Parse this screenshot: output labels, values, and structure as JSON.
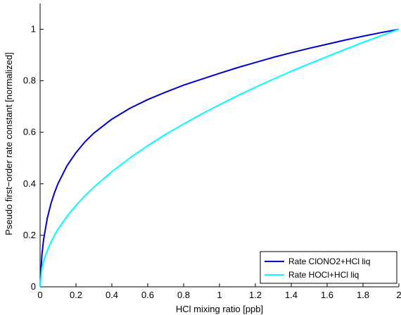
{
  "chart_data": {
    "type": "line",
    "title": "",
    "xlabel": "HCl mixing ratio [ppb]",
    "ylabel": "Pseudo first−order rate constant [normalized]",
    "xlim": [
      0,
      2
    ],
    "ylim": [
      0,
      1.1
    ],
    "xticks": [
      0,
      0.2,
      0.4,
      0.6,
      0.8,
      1,
      1.2,
      1.4,
      1.6,
      1.8,
      2
    ],
    "xtick_labels": [
      "0",
      "0.2",
      "0.4",
      "0.6",
      "0.8",
      "1",
      "1.2",
      "1.4",
      "1.6",
      "1.8",
      "2"
    ],
    "yticks": [
      0,
      0.2,
      0.4,
      0.6,
      0.8,
      1
    ],
    "ytick_labels": [
      "0",
      "0.2",
      "0.4",
      "0.6",
      "0.8",
      "1"
    ],
    "grid": false,
    "legend_position": "bottom-right",
    "series": [
      {
        "name": "Rate ClONO2+HCl liq",
        "color": "#0000cc",
        "x": [
          0,
          0.01,
          0.02,
          0.04,
          0.06,
          0.08,
          0.1,
          0.15,
          0.2,
          0.25,
          0.3,
          0.4,
          0.5,
          0.6,
          0.7,
          0.8,
          0.9,
          1.0,
          1.1,
          1.2,
          1.3,
          1.4,
          1.5,
          1.6,
          1.7,
          1.8,
          1.9,
          2.0
        ],
        "y": [
          0,
          0.124,
          0.186,
          0.266,
          0.322,
          0.365,
          0.401,
          0.47,
          0.521,
          0.563,
          0.597,
          0.651,
          0.693,
          0.727,
          0.756,
          0.783,
          0.806,
          0.829,
          0.851,
          0.871,
          0.891,
          0.909,
          0.926,
          0.942,
          0.958,
          0.973,
          0.987,
          1.0
        ]
      },
      {
        "name": "Rate HOCl+HCl liq",
        "color": "#00ffff",
        "x": [
          0,
          0.01,
          0.02,
          0.04,
          0.06,
          0.08,
          0.1,
          0.15,
          0.2,
          0.25,
          0.3,
          0.4,
          0.5,
          0.6,
          0.7,
          0.8,
          0.9,
          1.0,
          1.1,
          1.2,
          1.3,
          1.4,
          1.5,
          1.6,
          1.7,
          1.8,
          1.9,
          2.0
        ],
        "y": [
          0,
          0.072,
          0.101,
          0.141,
          0.173,
          0.2,
          0.224,
          0.274,
          0.316,
          0.354,
          0.387,
          0.447,
          0.5,
          0.548,
          0.592,
          0.632,
          0.671,
          0.707,
          0.742,
          0.775,
          0.806,
          0.837,
          0.866,
          0.894,
          0.922,
          0.949,
          0.975,
          1.0
        ]
      }
    ]
  }
}
